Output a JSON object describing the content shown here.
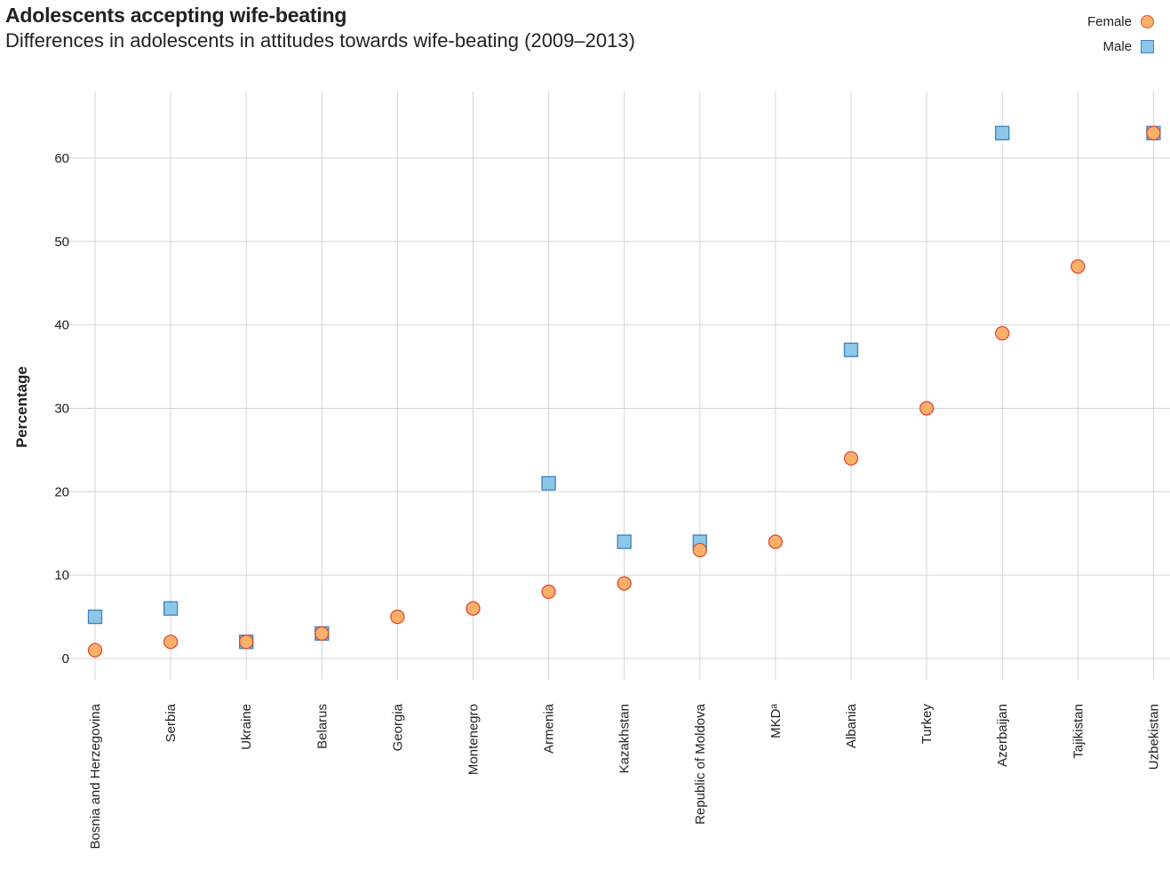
{
  "chart_data": {
    "type": "scatter",
    "title": "Adolescents accepting wife-beating",
    "subtitle": "Differences in adolescents in attitudes towards wife-beating (2009–2013)",
    "ylabel": "Percentage",
    "xlabel": "",
    "ylim": [
      0,
      65
    ],
    "yticks": [
      0,
      10,
      20,
      30,
      40,
      50,
      60
    ],
    "grid": true,
    "legend_position": "top-right",
    "categories": [
      "Bosnia and Herzegovina",
      "Serbia",
      "Ukraine",
      "Belarus",
      "Georgia",
      "Montenegro",
      "Armenia",
      "Kazakhstan",
      "Republic of Moldova",
      "MKDᵃ",
      "Albania",
      "Turkey",
      "Azerbaijan",
      "Tajikistan",
      "Uzbekistan"
    ],
    "series": [
      {
        "name": "Female",
        "marker": "circle",
        "color": "#fbb06a",
        "edge": "#e04b36",
        "values": [
          1,
          2,
          2,
          3,
          5,
          6,
          8,
          9,
          13,
          14,
          24,
          30,
          39,
          47,
          63
        ]
      },
      {
        "name": "Male",
        "marker": "square",
        "color": "#8cc7e8",
        "edge": "#3d82bd",
        "values": [
          5,
          6,
          2,
          3,
          null,
          null,
          21,
          14,
          14,
          null,
          37,
          null,
          63,
          null,
          63
        ]
      }
    ]
  }
}
